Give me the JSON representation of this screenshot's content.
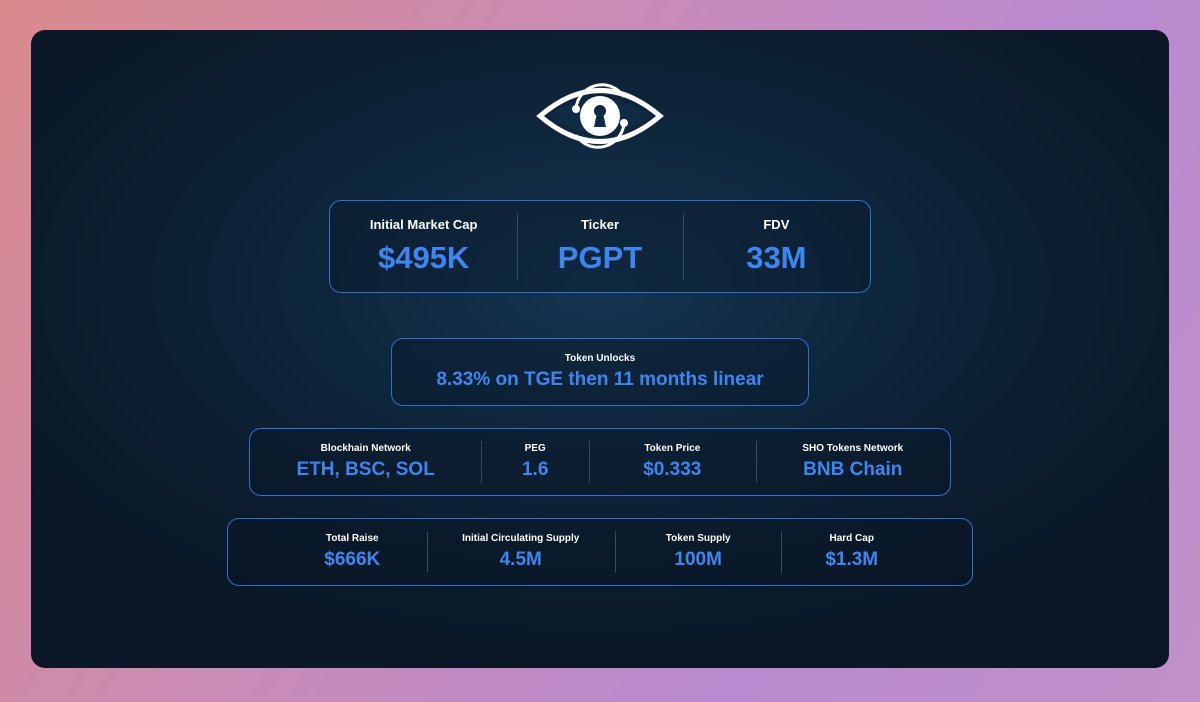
{
  "logo": {
    "icon": "eye-keyhole-logo"
  },
  "colors": {
    "accent": "#3b86f0",
    "border": "#2f6fd6"
  },
  "row1": [
    {
      "label": "Initial Market Cap",
      "value": "$495K"
    },
    {
      "label": "Ticker",
      "value": "PGPT"
    },
    {
      "label": "FDV",
      "value": "33M"
    }
  ],
  "unlocks": {
    "label": "Token Unlocks",
    "value": "8.33% on TGE then 11 months linear"
  },
  "row3": [
    {
      "label": "Blockhain Network",
      "value": "ETH, BSC, SOL"
    },
    {
      "label": "PEG",
      "value": "1.6"
    },
    {
      "label": "Token Price",
      "value": "$0.333"
    },
    {
      "label": "SHO Tokens Network",
      "value": "BNB Chain"
    }
  ],
  "row4": [
    {
      "label": "Total Raise",
      "value": "$666K"
    },
    {
      "label": "Initial Circulating Supply",
      "value": "4.5M"
    },
    {
      "label": "Token Supply",
      "value": "100M"
    },
    {
      "label": "Hard Cap",
      "value": "$1.3M"
    }
  ]
}
